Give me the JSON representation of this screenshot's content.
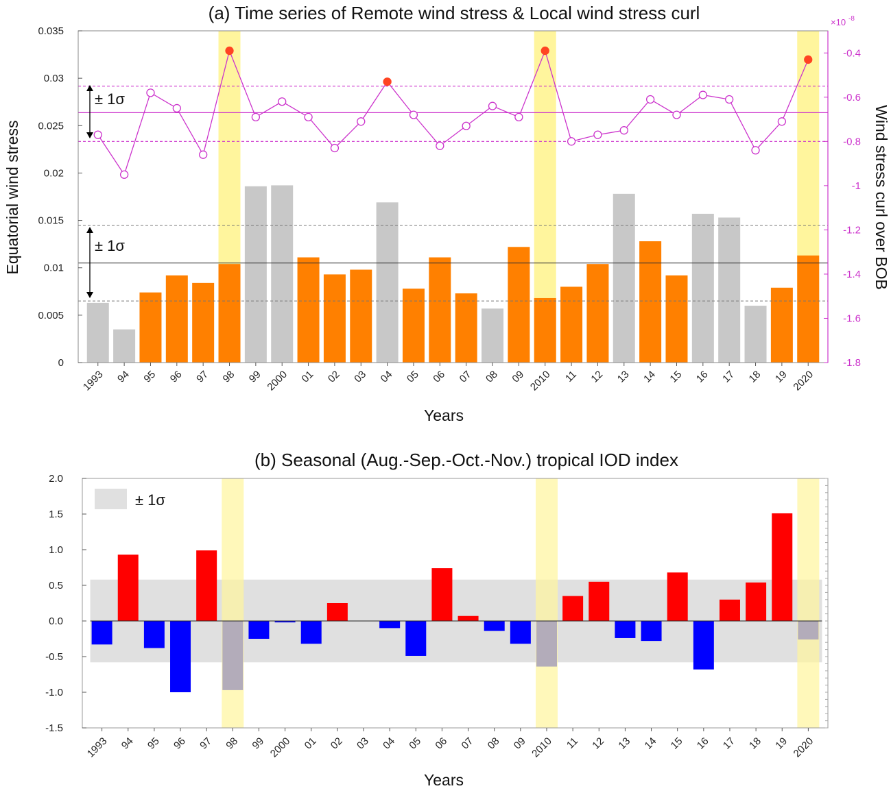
{
  "chart_data": [
    {
      "type": "bar",
      "title": "(a) Time series of Remote wind stress & Local wind stress curl",
      "xlabel": "Years",
      "ylabel": "Equatorial wind stress",
      "ylabel_right": "Wind stress curl over BOB",
      "right_axis_multiplier": "×10",
      "right_axis_exponent": "-8",
      "categories": [
        "1993",
        "94",
        "95",
        "96",
        "97",
        "98",
        "99",
        "2000",
        "01",
        "02",
        "03",
        "04",
        "05",
        "06",
        "07",
        "08",
        "09",
        "2010",
        "11",
        "12",
        "13",
        "14",
        "15",
        "16",
        "17",
        "18",
        "19",
        "2020"
      ],
      "ylim": [
        0,
        0.035
      ],
      "y_ticks": [
        "0",
        "0.005",
        "0.01",
        "0.015",
        "0.02",
        "0.025",
        "0.03",
        "0.035"
      ],
      "y2lim": [
        -1.8,
        -0.3
      ],
      "y2_ticks": [
        "-1.8",
        "-1.6",
        "-1.4",
        "-1.2",
        "-1",
        "-0.8",
        "-0.6",
        "-0.4"
      ],
      "series": [
        {
          "name": "Equatorial wind stress",
          "kind": "bar",
          "values": [
            0.0063,
            0.0035,
            0.0074,
            0.0092,
            0.0084,
            0.0104,
            0.0186,
            0.0187,
            0.0111,
            0.0093,
            0.0098,
            0.0169,
            0.0078,
            0.0111,
            0.0073,
            0.0057,
            0.0122,
            0.0068,
            0.008,
            0.0104,
            0.0178,
            0.0128,
            0.0092,
            0.0157,
            0.0153,
            0.006,
            0.0079,
            0.0113
          ],
          "colors": {
            "in_range": "#ff8000",
            "out_of_range": "#c8c8c8"
          }
        },
        {
          "name": "Wind stress curl over BOB",
          "kind": "line",
          "axis": "right",
          "values": [
            -0.77,
            -0.95,
            -0.58,
            -0.65,
            -0.86,
            -0.39,
            -0.69,
            -0.62,
            -0.69,
            -0.83,
            -0.71,
            -0.53,
            -0.68,
            -0.82,
            -0.73,
            -0.64,
            -0.69,
            -0.39,
            -0.8,
            -0.77,
            -0.75,
            -0.61,
            -0.68,
            -0.59,
            -0.61,
            -0.84,
            -0.71,
            -0.43
          ],
          "highlight_indices": [
            5,
            11,
            17,
            27
          ],
          "color": "#cc33cc",
          "highlight_color": "#ff4422"
        }
      ],
      "reference_lines": {
        "wind_stress": {
          "mean": 0.0105,
          "upper": 0.0145,
          "lower": 0.0065
        },
        "curl": {
          "mean": -0.67,
          "upper": -0.55,
          "lower": -0.8
        }
      },
      "sigma_label": "± 1σ",
      "highlighted_years": [
        "98",
        "2010",
        "2020"
      ]
    },
    {
      "type": "bar",
      "title": "(b) Seasonal (Aug.-Sep.-Oct.-Nov.) tropical IOD index",
      "xlabel": "Years",
      "ylabel": "",
      "categories": [
        "1993",
        "94",
        "95",
        "96",
        "97",
        "98",
        "99",
        "2000",
        "01",
        "02",
        "03",
        "04",
        "05",
        "06",
        "07",
        "08",
        "09",
        "2010",
        "11",
        "12",
        "13",
        "14",
        "15",
        "16",
        "17",
        "18",
        "19",
        "2020"
      ],
      "ylim": [
        -1.5,
        2.0
      ],
      "y_ticks": [
        "-1.5",
        "-1.0",
        "-0.5",
        "0.0",
        "0.5",
        "1.0",
        "1.5",
        "2.0"
      ],
      "series": [
        {
          "name": "IOD index",
          "values": [
            -0.33,
            0.93,
            -0.38,
            -1.0,
            0.99,
            -0.97,
            -0.25,
            -0.02,
            -0.32,
            0.25,
            0.0,
            -0.1,
            -0.49,
            0.74,
            0.07,
            -0.14,
            -0.32,
            -0.64,
            0.35,
            0.55,
            -0.24,
            -0.28,
            0.68,
            -0.68,
            0.3,
            0.54,
            1.51,
            -0.26
          ],
          "colors": {
            "positive": "#ff0000",
            "negative": "#0000ff"
          }
        }
      ],
      "sigma_band": [
        -0.58,
        0.58
      ],
      "legend_label": "± 1σ",
      "legend_position": "top-left",
      "highlighted_years": [
        "98",
        "2010",
        "2020"
      ]
    }
  ]
}
